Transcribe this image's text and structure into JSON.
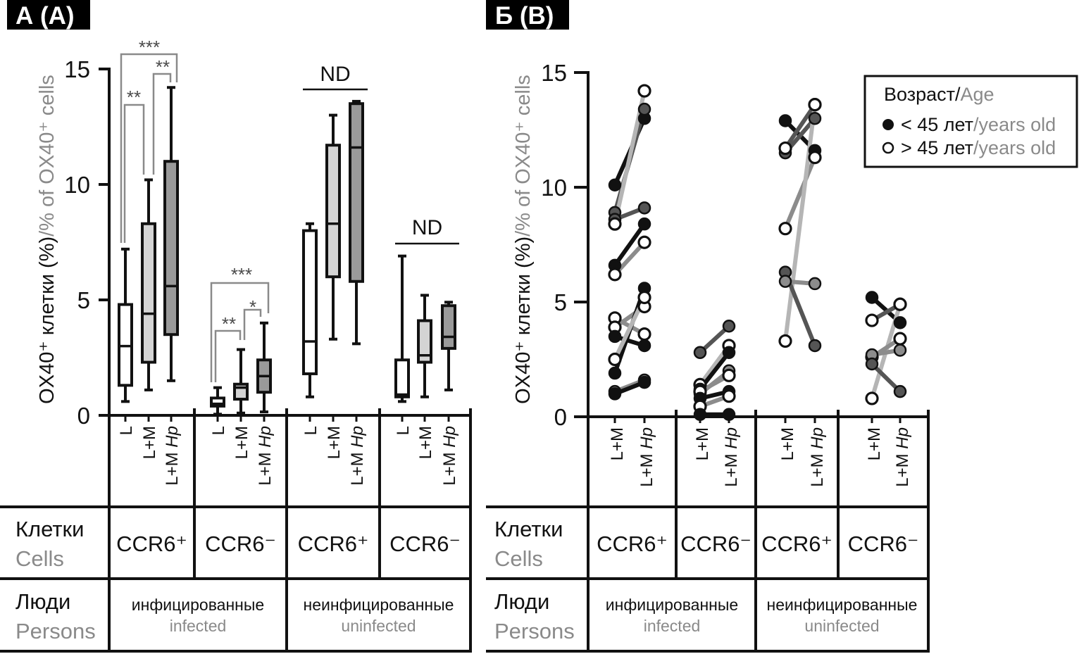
{
  "panels": [
    {
      "badge": "А (A)"
    },
    {
      "badge": "Б (B)"
    }
  ],
  "table": {
    "row_cells": {
      "ru": "Клетки",
      "en": "Cells"
    },
    "row_persons": {
      "ru": "Люди",
      "en": "Persons"
    },
    "cells": [
      "CCR6⁺",
      "CCR6⁻",
      "CCR6⁺",
      "CCR6⁻"
    ],
    "persons": [
      {
        "ru": "инфицированные",
        "en": "infected"
      },
      {
        "ru": "неинфицированные",
        "en": "uninfected"
      }
    ]
  },
  "legend": {
    "title_ru": "Возраст/",
    "title_en": "Age",
    "items": [
      {
        "marker": "filled-circle",
        "ru": "< 45 лет",
        "en": "/years old"
      },
      {
        "marker": "open-circle",
        "ru": "> 45 лет",
        "en": "/years old"
      }
    ]
  },
  "colors": {
    "axis": "#111111",
    "secondary_text": "#8a8a8a",
    "bracket": "#8a8a8a",
    "shades": {
      "black": "#111111",
      "dark-gray": "#555555",
      "gray": "#8c8c8c",
      "light-gray": "#b5b5b5"
    }
  },
  "chart_data": [
    {
      "panel": "А (A)",
      "type": "box",
      "ylabel_ru": "OX40⁺ клетки (%)",
      "ylabel_en": "/% of OX40⁺ cells",
      "ylim": [
        0,
        15
      ],
      "yticks": [
        0,
        5,
        10,
        15
      ],
      "grid": false,
      "categories": [
        {
          "text": "L"
        },
        {
          "text": "L+M"
        },
        {
          "text": "L+M",
          "italic": "Hp"
        }
      ],
      "box_fills": [
        "#ffffff",
        "#d4d4d4",
        "#9a9a9a"
      ],
      "groups": [
        {
          "cells": "CCR6⁺",
          "persons": "infected",
          "boxes": [
            {
              "min": 0.6,
              "q1": 1.3,
              "median": 3.0,
              "q3": 4.8,
              "max": 7.2
            },
            {
              "min": 1.1,
              "q1": 2.3,
              "median": 4.4,
              "q3": 8.3,
              "max": 10.2
            },
            {
              "min": 1.5,
              "q1": 3.5,
              "median": 5.6,
              "q3": 11.0,
              "max": 14.2
            }
          ]
        },
        {
          "cells": "CCR6⁻",
          "persons": "infected",
          "boxes": [
            {
              "min": 0.05,
              "q1": 0.4,
              "median": 0.5,
              "q3": 0.75,
              "max": 1.2
            },
            {
              "min": 0.1,
              "q1": 0.7,
              "median": 1.2,
              "q3": 1.35,
              "max": 2.85
            },
            {
              "min": 0.15,
              "q1": 1.0,
              "median": 1.7,
              "q3": 2.4,
              "max": 4.0
            }
          ]
        },
        {
          "cells": "CCR6⁺",
          "persons": "uninfected",
          "boxes": [
            {
              "min": 0.8,
              "q1": 1.8,
              "median": 3.2,
              "q3": 8.0,
              "max": 8.3
            },
            {
              "min": 3.3,
              "q1": 6.0,
              "median": 8.3,
              "q3": 11.7,
              "max": 13.0
            },
            {
              "min": 3.1,
              "q1": 5.8,
              "median": 11.6,
              "q3": 13.5,
              "max": 13.6
            }
          ]
        },
        {
          "cells": "CCR6⁻",
          "persons": "uninfected",
          "boxes": [
            {
              "min": 0.6,
              "q1": 0.8,
              "median": 0.9,
              "q3": 2.4,
              "max": 6.9
            },
            {
              "min": 0.8,
              "q1": 2.3,
              "median": 2.6,
              "q3": 4.1,
              "max": 5.2
            },
            {
              "min": 1.1,
              "q1": 2.9,
              "median": 3.4,
              "q3": 4.75,
              "max": 4.9
            }
          ]
        }
      ],
      "annotations": [
        {
          "type": "significance",
          "group": 0,
          "from": 0,
          "to": 2,
          "label": "***"
        },
        {
          "type": "significance",
          "group": 0,
          "from": 0,
          "to": 1,
          "label": "**"
        },
        {
          "type": "significance",
          "group": 0,
          "from": 1,
          "to": 2,
          "label": "**"
        },
        {
          "type": "significance",
          "group": 1,
          "from": 0,
          "to": 2,
          "label": "***"
        },
        {
          "type": "significance",
          "group": 1,
          "from": 0,
          "to": 1,
          "label": "**"
        },
        {
          "type": "significance",
          "group": 1,
          "from": 1,
          "to": 2,
          "label": "*"
        },
        {
          "type": "nd",
          "group": 2,
          "label": "ND"
        },
        {
          "type": "nd",
          "group": 3,
          "label": "ND"
        }
      ]
    },
    {
      "panel": "Б (B)",
      "type": "line",
      "subtype": "paired-points",
      "ylabel_ru": "OX40⁺ клетки (%)",
      "ylabel_en": "/% of OX40⁺ cells",
      "ylim": [
        0,
        15
      ],
      "yticks": [
        0,
        5,
        10,
        15
      ],
      "grid": false,
      "legend_position": "top-right",
      "categories": [
        {
          "text": "L+M"
        },
        {
          "text": "L+M",
          "italic": "Hp"
        }
      ],
      "groups": [
        {
          "cells": "CCR6⁺",
          "persons": "infected",
          "pairs": [
            {
              "age": "<45",
              "shade": "black",
              "values": [
                10.1,
                13.0
              ]
            },
            {
              "age": "<45",
              "shade": "dark-gray",
              "values": [
                8.9,
                13.4
              ]
            },
            {
              "age": "<45",
              "shade": "dark-gray",
              "values": [
                8.6,
                9.1
              ]
            },
            {
              "age": ">45",
              "shade": "light-gray",
              "values": [
                8.4,
                14.2
              ]
            },
            {
              "age": "<45",
              "shade": "black",
              "values": [
                6.6,
                8.4
              ]
            },
            {
              "age": ">45",
              "shade": "gray",
              "values": [
                6.2,
                7.6
              ]
            },
            {
              "age": ">45",
              "shade": "gray",
              "values": [
                4.3,
                3.6
              ]
            },
            {
              "age": ">45",
              "shade": "gray",
              "values": [
                3.9,
                4.8
              ]
            },
            {
              "age": "<45",
              "shade": "black",
              "values": [
                3.5,
                3.1
              ]
            },
            {
              "age": "<45",
              "shade": "black",
              "values": [
                1.9,
                5.6
              ]
            },
            {
              "age": ">45",
              "shade": "light-gray",
              "values": [
                2.5,
                5.2
              ]
            },
            {
              "age": "<45",
              "shade": "gray",
              "values": [
                1.1,
                1.6
              ]
            },
            {
              "age": "<45",
              "shade": "black",
              "values": [
                1.0,
                1.5
              ]
            }
          ]
        },
        {
          "cells": "CCR6⁻",
          "persons": "infected",
          "pairs": [
            {
              "age": "<45",
              "shade": "dark-gray",
              "values": [
                2.8,
                3.95
              ]
            },
            {
              "age": ">45",
              "shade": "light-gray",
              "values": [
                1.4,
                3.1
              ]
            },
            {
              "age": "<45",
              "shade": "black",
              "values": [
                1.2,
                2.8
              ]
            },
            {
              "age": "<45",
              "shade": "gray",
              "values": [
                1.0,
                2.0
              ]
            },
            {
              "age": ">45",
              "shade": "gray",
              "values": [
                1.1,
                1.8
              ]
            },
            {
              "age": "<45",
              "shade": "black",
              "values": [
                0.8,
                1.1
              ]
            },
            {
              "age": ">45",
              "shade": "gray",
              "values": [
                0.45,
                0.9
              ]
            },
            {
              "age": "<45",
              "shade": "black",
              "values": [
                0.1,
                0.1
              ]
            }
          ]
        },
        {
          "cells": "CCR6⁺",
          "persons": "uninfected",
          "pairs": [
            {
              "age": "<45",
              "shade": "black",
              "values": [
                12.9,
                11.6
              ]
            },
            {
              "age": "<45",
              "shade": "dark-gray",
              "values": [
                11.5,
                13.0
              ]
            },
            {
              "age": ">45",
              "shade": "dark-gray",
              "values": [
                11.7,
                13.6
              ]
            },
            {
              "age": ">45",
              "shade": "gray",
              "values": [
                8.2,
                11.3
              ]
            },
            {
              "age": ">45",
              "shade": "light-gray",
              "values": [
                3.3,
                13.6
              ]
            },
            {
              "age": "<45",
              "shade": "dark-gray",
              "values": [
                6.3,
                3.1
              ]
            },
            {
              "age": "<45",
              "shade": "gray",
              "values": [
                5.9,
                5.8
              ]
            }
          ]
        },
        {
          "cells": "CCR6⁻",
          "persons": "uninfected",
          "pairs": [
            {
              "age": "<45",
              "shade": "black",
              "values": [
                5.2,
                4.1
              ]
            },
            {
              "age": ">45",
              "shade": "dark-gray",
              "values": [
                4.2,
                4.9
              ]
            },
            {
              "age": ">45",
              "shade": "light-gray",
              "values": [
                0.8,
                4.9
              ]
            },
            {
              "age": ">45",
              "shade": "gray",
              "values": [
                2.6,
                3.4
              ]
            },
            {
              "age": "<45",
              "shade": "gray",
              "values": [
                2.7,
                2.9
              ]
            },
            {
              "age": "<45",
              "shade": "dark-gray",
              "values": [
                2.3,
                1.1
              ]
            }
          ]
        }
      ]
    }
  ]
}
